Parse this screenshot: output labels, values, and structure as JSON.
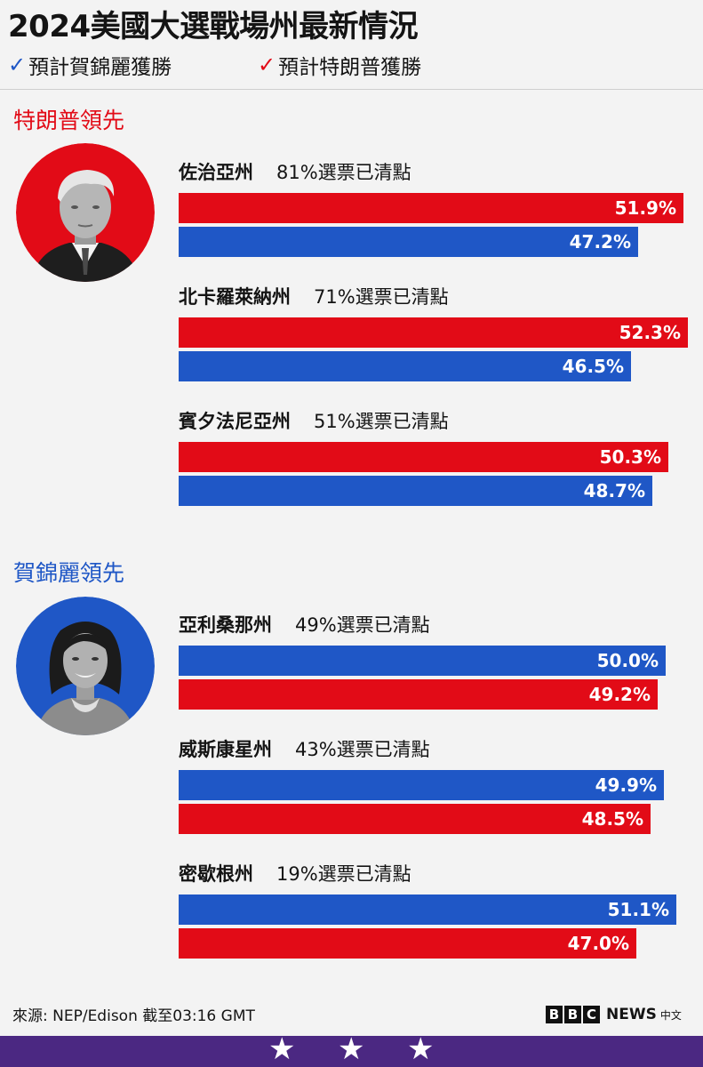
{
  "title": "2024美國大選戰場州最新情況",
  "legend": {
    "harris_label": "預計賀錦麗獲勝",
    "trump_label": "預計特朗普獲勝",
    "check_glyph": "✓"
  },
  "colors": {
    "trump": "#e20b17",
    "harris": "#1f57c6"
  },
  "sections": [
    {
      "label": "特朗普領先",
      "label_color": "#e20b17",
      "avatar": "trump-portrait",
      "states": [
        {
          "name": "佐治亞州",
          "counted": "81%選票已清點",
          "bars": [
            {
              "party": "trump",
              "value": 51.9,
              "label": "51.9%"
            },
            {
              "party": "harris",
              "value": 47.2,
              "label": "47.2%"
            }
          ]
        },
        {
          "name": "北卡羅萊納州",
          "counted": "71%選票已清點",
          "bars": [
            {
              "party": "trump",
              "value": 52.3,
              "label": "52.3%"
            },
            {
              "party": "harris",
              "value": 46.5,
              "label": "46.5%"
            }
          ]
        },
        {
          "name": "賓夕法尼亞州",
          "counted": "51%選票已清點",
          "bars": [
            {
              "party": "trump",
              "value": 50.3,
              "label": "50.3%"
            },
            {
              "party": "harris",
              "value": 48.7,
              "label": "48.7%"
            }
          ]
        }
      ]
    },
    {
      "label": "賀錦麗領先",
      "label_color": "#1f57c6",
      "avatar": "harris-portrait",
      "states": [
        {
          "name": "亞利桑那州",
          "counted": "49%選票已清點",
          "bars": [
            {
              "party": "harris",
              "value": 50.0,
              "label": "50.0%"
            },
            {
              "party": "trump",
              "value": 49.2,
              "label": "49.2%"
            }
          ]
        },
        {
          "name": "威斯康星州",
          "counted": "43%選票已清點",
          "bars": [
            {
              "party": "harris",
              "value": 49.9,
              "label": "49.9%"
            },
            {
              "party": "trump",
              "value": 48.5,
              "label": "48.5%"
            }
          ]
        },
        {
          "name": "密歇根州",
          "counted": "19%選票已清點",
          "bars": [
            {
              "party": "harris",
              "value": 51.1,
              "label": "51.1%"
            },
            {
              "party": "trump",
              "value": 47.0,
              "label": "47.0%"
            }
          ]
        }
      ]
    }
  ],
  "source": "來源: NEP/Edison 截至03:16 GMT",
  "brand": {
    "b1": "B",
    "b2": "B",
    "b3": "C",
    "news": "NEWS",
    "zh": "中文"
  },
  "footer_stars": [
    "★",
    "★",
    "★"
  ],
  "chart_data": {
    "type": "bar",
    "orientation": "horizontal",
    "categories": [
      "佐治亞州",
      "北卡羅萊納州",
      "賓夕法尼亞州",
      "亞利桑那州",
      "威斯康星州",
      "密歇根州"
    ],
    "series": [
      {
        "name": "特朗普",
        "values": [
          51.9,
          52.3,
          50.3,
          49.2,
          48.5,
          47.0
        ]
      },
      {
        "name": "賀錦麗",
        "values": [
          47.2,
          46.5,
          48.7,
          50.0,
          49.9,
          51.1
        ]
      }
    ]
  }
}
